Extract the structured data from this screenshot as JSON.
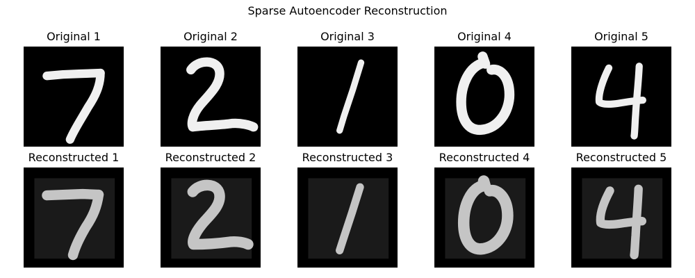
{
  "figure": {
    "title": "Sparse Autoencoder Reconstruction"
  },
  "originals": [
    {
      "title": "Original 1",
      "digit": "7"
    },
    {
      "title": "Original 2",
      "digit": "2"
    },
    {
      "title": "Original 3",
      "digit": "1"
    },
    {
      "title": "Original 4",
      "digit": "0"
    },
    {
      "title": "Original 5",
      "digit": "4"
    }
  ],
  "reconstructions": [
    {
      "title": "Reconstructed 1",
      "digit": "7"
    },
    {
      "title": "Reconstructed 2",
      "digit": "2"
    },
    {
      "title": "Reconstructed 3",
      "digit": "1"
    },
    {
      "title": "Reconstructed 4",
      "digit": "0"
    },
    {
      "title": "Reconstructed 5",
      "digit": "4"
    }
  ],
  "colors": {
    "background": "#000000",
    "stroke": "#f0f0f0",
    "reconstruction_stroke": "#d4d4d4",
    "reconstruction_field": "#1a1a1a"
  }
}
